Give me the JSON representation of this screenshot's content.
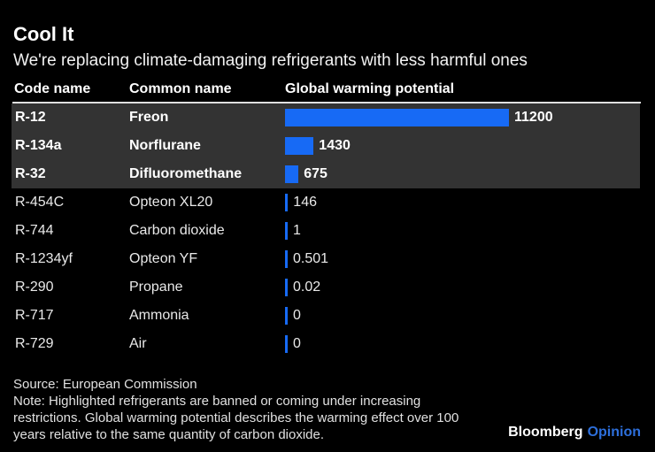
{
  "header": {
    "title": "Cool It",
    "subtitle": "We're replacing climate-damaging refrigerants with less harmful ones"
  },
  "table": {
    "columns": {
      "code": "Code name",
      "common": "Common name",
      "gwp": "Global warming potential"
    }
  },
  "chart_data": {
    "type": "bar",
    "orientation": "horizontal",
    "title": "Cool It",
    "subtitle": "We're replacing climate-damaging refrigerants with less harmful ones",
    "value_label": "Global warming potential",
    "xmax": 11200,
    "rows": [
      {
        "code": "R-12",
        "common": "Freon",
        "value": 11200,
        "label": "11200",
        "highlighted": true
      },
      {
        "code": "R-134a",
        "common": "Norflurane",
        "value": 1430,
        "label": "1430",
        "highlighted": true
      },
      {
        "code": "R-32",
        "common": "Difluoromethane",
        "value": 675,
        "label": "675",
        "highlighted": true
      },
      {
        "code": "R-454C",
        "common": "Opteon XL20",
        "value": 146,
        "label": "146",
        "highlighted": false
      },
      {
        "code": "R-744",
        "common": "Carbon dioxide",
        "value": 1,
        "label": "1",
        "highlighted": false
      },
      {
        "code": "R-1234yf",
        "common": "Opteon YF",
        "value": 0.501,
        "label": "0.501",
        "highlighted": false
      },
      {
        "code": "R-290",
        "common": "Propane",
        "value": 0.02,
        "label": "0.02",
        "highlighted": false
      },
      {
        "code": "R-717",
        "common": "Ammonia",
        "value": 0,
        "label": "0",
        "highlighted": false
      },
      {
        "code": "R-729",
        "common": "Air",
        "value": 0,
        "label": "0",
        "highlighted": false
      }
    ]
  },
  "footer": {
    "source": "Source: European Commission",
    "note_lines": [
      "Note: Highlighted refrigerants are banned or coming under increasing",
      "restrictions. Global warming potential describes the warming effect over 100",
      "years relative to the same quantity of carbon dioxide."
    ]
  },
  "brand": {
    "name": "Bloomberg",
    "suffix": "Opinion"
  },
  "colors": {
    "background": "#000000",
    "highlight_row_bg": "#333333",
    "bar_blue": "#176AF5",
    "header_rule": "#E0E0E0",
    "opinion_blue": "#2D6FDB"
  }
}
